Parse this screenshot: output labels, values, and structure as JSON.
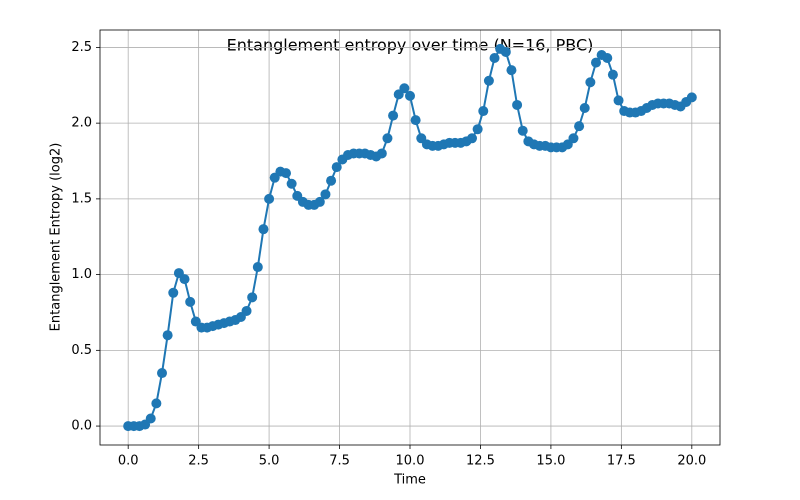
{
  "chart_data": {
    "type": "line",
    "title": "Entanglement entropy over time (N=16, PBC)",
    "xlabel": "Time",
    "ylabel": "Entanglement Entropy (log2)",
    "x": [
      0,
      0.2,
      0.4,
      0.6,
      0.8,
      1.0,
      1.2,
      1.4,
      1.6,
      1.8,
      2.0,
      2.2,
      2.4,
      2.6,
      2.8,
      3.0,
      3.2,
      3.4,
      3.6,
      3.8,
      4.0,
      4.2,
      4.4,
      4.6,
      4.8,
      5.0,
      5.2,
      5.4,
      5.6,
      5.8,
      6.0,
      6.2,
      6.4,
      6.6,
      6.8,
      7.0,
      7.2,
      7.4,
      7.6,
      7.8,
      8.0,
      8.2,
      8.4,
      8.6,
      8.8,
      9.0,
      9.2,
      9.4,
      9.6,
      9.8,
      10.0,
      10.2,
      10.4,
      10.6,
      10.8,
      11.0,
      11.2,
      11.4,
      11.6,
      11.8,
      12.0,
      12.2,
      12.4,
      12.6,
      12.8,
      13.0,
      13.2,
      13.4,
      13.6,
      13.8,
      14.0,
      14.2,
      14.4,
      14.6,
      14.8,
      15.0,
      15.2,
      15.4,
      15.6,
      15.8,
      16.0,
      16.2,
      16.4,
      16.6,
      16.8,
      17.0,
      17.2,
      17.4,
      17.6,
      17.8,
      18.0,
      18.2,
      18.4,
      18.6,
      18.8,
      19.0,
      19.2,
      19.4,
      19.6,
      19.8,
      20.0
    ],
    "values": [
      0,
      0,
      0,
      0.01,
      0.05,
      0.15,
      0.35,
      0.6,
      0.88,
      1.01,
      0.97,
      0.82,
      0.69,
      0.65,
      0.65,
      0.66,
      0.67,
      0.68,
      0.69,
      0.7,
      0.72,
      0.76,
      0.85,
      1.05,
      1.3,
      1.5,
      1.64,
      1.68,
      1.67,
      1.6,
      1.52,
      1.48,
      1.46,
      1.46,
      1.48,
      1.53,
      1.62,
      1.71,
      1.76,
      1.79,
      1.8,
      1.8,
      1.8,
      1.79,
      1.78,
      1.8,
      1.9,
      2.05,
      2.19,
      2.23,
      2.18,
      2.02,
      1.9,
      1.86,
      1.85,
      1.85,
      1.86,
      1.87,
      1.87,
      1.87,
      1.88,
      1.9,
      1.96,
      2.08,
      2.28,
      2.43,
      2.49,
      2.47,
      2.35,
      2.12,
      1.95,
      1.88,
      1.86,
      1.85,
      1.85,
      1.84,
      1.84,
      1.84,
      1.86,
      1.9,
      1.98,
      2.1,
      2.27,
      2.4,
      2.45,
      2.43,
      2.32,
      2.15,
      2.08,
      2.07,
      2.07,
      2.08,
      2.1,
      2.12,
      2.13,
      2.13,
      2.13,
      2.12,
      2.11,
      2.14,
      2.17
    ],
    "color": "#1f77b4",
    "markers": true,
    "grid": true,
    "xlim": [
      -1,
      21
    ],
    "xticks": [
      {
        "value": 0,
        "label": "0.0"
      },
      2.5,
      {
        "value": 5,
        "label": "5.0"
      },
      7.5,
      {
        "value": 10,
        "label": "10.0"
      },
      12.5,
      {
        "value": 15,
        "label": "15.0"
      },
      17.5,
      {
        "value": 20,
        "label": "20.0"
      }
    ],
    "ylim": [
      -0.125,
      2.615
    ],
    "yticks": [
      {
        "value": 0,
        "label": "0.0"
      },
      0.5,
      {
        "value": 1,
        "label": "1.0"
      },
      1.5,
      {
        "value": 2,
        "label": "2.0"
      },
      2.5
    ]
  }
}
